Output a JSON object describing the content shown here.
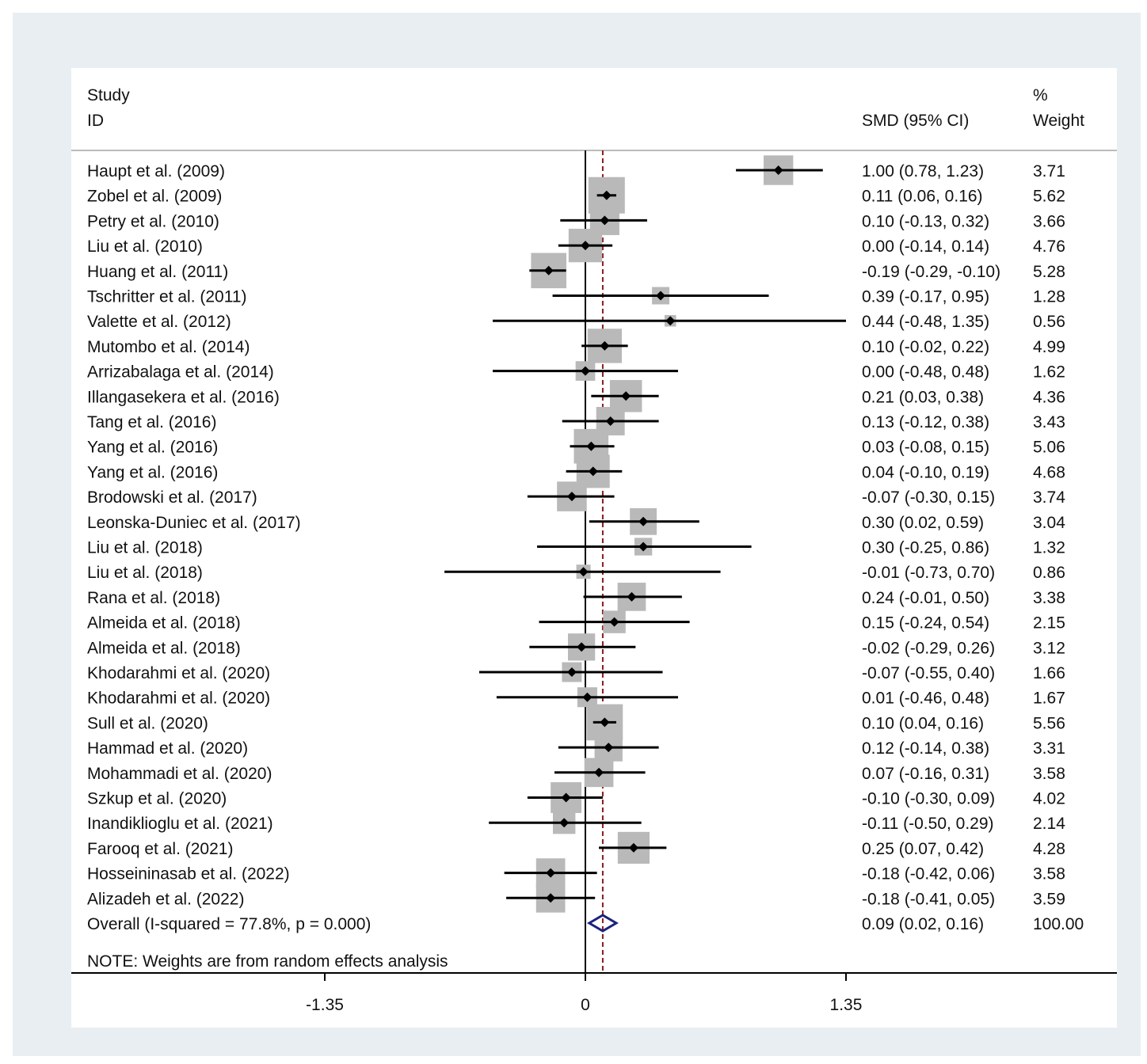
{
  "chart_data": {
    "type": "forest",
    "header": {
      "study_line1": "Study",
      "study_line2": "ID",
      "effect_label": "SMD (95% CI)",
      "weight_line1": "%",
      "weight_line2": "Weight"
    },
    "xticks": [
      {
        "value": -1.35,
        "label": "-1.35"
      },
      {
        "value": 0,
        "label": "0"
      },
      {
        "value": 1.35,
        "label": "1.35"
      }
    ],
    "studies": [
      {
        "name": "Haupt et al. (2009)",
        "smd": 1.0,
        "lower": 0.78,
        "upper": 1.23,
        "ci_text": "1.00 (0.78, 1.23)",
        "weight": 3.71,
        "weight_text": "3.71"
      },
      {
        "name": "Zobel et al. (2009)",
        "smd": 0.11,
        "lower": 0.06,
        "upper": 0.16,
        "ci_text": "0.11 (0.06, 0.16)",
        "weight": 5.62,
        "weight_text": "5.62"
      },
      {
        "name": "Petry et al. (2010)",
        "smd": 0.1,
        "lower": -0.13,
        "upper": 0.32,
        "ci_text": "0.10 (-0.13, 0.32)",
        "weight": 3.66,
        "weight_text": "3.66"
      },
      {
        "name": "Liu et al. (2010)",
        "smd": 0.0,
        "lower": -0.14,
        "upper": 0.14,
        "ci_text": "0.00 (-0.14, 0.14)",
        "weight": 4.76,
        "weight_text": "4.76"
      },
      {
        "name": "Huang et al. (2011)",
        "smd": -0.19,
        "lower": -0.29,
        "upper": -0.1,
        "ci_text": "-0.19 (-0.29, -0.10)",
        "weight": 5.28,
        "weight_text": "5.28"
      },
      {
        "name": "Tschritter et al. (2011)",
        "smd": 0.39,
        "lower": -0.17,
        "upper": 0.95,
        "ci_text": "0.39 (-0.17, 0.95)",
        "weight": 1.28,
        "weight_text": "1.28"
      },
      {
        "name": "Valette et al. (2012)",
        "smd": 0.44,
        "lower": -0.48,
        "upper": 1.35,
        "ci_text": "0.44 (-0.48, 1.35)",
        "weight": 0.56,
        "weight_text": "0.56"
      },
      {
        "name": "Mutombo et al. (2014)",
        "smd": 0.1,
        "lower": -0.02,
        "upper": 0.22,
        "ci_text": "0.10 (-0.02, 0.22)",
        "weight": 4.99,
        "weight_text": "4.99"
      },
      {
        "name": "Arrizabalaga et al. (2014)",
        "smd": 0.0,
        "lower": -0.48,
        "upper": 0.48,
        "ci_text": "0.00 (-0.48, 0.48)",
        "weight": 1.62,
        "weight_text": "1.62"
      },
      {
        "name": "Illangasekera et al. (2016)",
        "smd": 0.21,
        "lower": 0.03,
        "upper": 0.38,
        "ci_text": "0.21 (0.03, 0.38)",
        "weight": 4.36,
        "weight_text": "4.36"
      },
      {
        "name": "Tang et al. (2016)",
        "smd": 0.13,
        "lower": -0.12,
        "upper": 0.38,
        "ci_text": "0.13 (-0.12, 0.38)",
        "weight": 3.43,
        "weight_text": "3.43"
      },
      {
        "name": "Yang et al. (2016)",
        "smd": 0.03,
        "lower": -0.08,
        "upper": 0.15,
        "ci_text": "0.03 (-0.08, 0.15)",
        "weight": 5.06,
        "weight_text": "5.06"
      },
      {
        "name": "Yang et al. (2016)",
        "smd": 0.04,
        "lower": -0.1,
        "upper": 0.19,
        "ci_text": "0.04 (-0.10, 0.19)",
        "weight": 4.68,
        "weight_text": "4.68"
      },
      {
        "name": "Brodowski et al. (2017)",
        "smd": -0.07,
        "lower": -0.3,
        "upper": 0.15,
        "ci_text": "-0.07 (-0.30, 0.15)",
        "weight": 3.74,
        "weight_text": "3.74"
      },
      {
        "name": "Leonska-Duniec et al. (2017)",
        "smd": 0.3,
        "lower": 0.02,
        "upper": 0.59,
        "ci_text": "0.30 (0.02, 0.59)",
        "weight": 3.04,
        "weight_text": "3.04"
      },
      {
        "name": "Liu et al. (2018)",
        "smd": 0.3,
        "lower": -0.25,
        "upper": 0.86,
        "ci_text": "0.30 (-0.25, 0.86)",
        "weight": 1.32,
        "weight_text": "1.32"
      },
      {
        "name": "Liu et al. (2018)",
        "smd": -0.01,
        "lower": -0.73,
        "upper": 0.7,
        "ci_text": "-0.01 (-0.73, 0.70)",
        "weight": 0.86,
        "weight_text": "0.86"
      },
      {
        "name": "Rana et al. (2018)",
        "smd": 0.24,
        "lower": -0.01,
        "upper": 0.5,
        "ci_text": "0.24 (-0.01, 0.50)",
        "weight": 3.38,
        "weight_text": "3.38"
      },
      {
        "name": "Almeida et al. (2018)",
        "smd": 0.15,
        "lower": -0.24,
        "upper": 0.54,
        "ci_text": "0.15 (-0.24, 0.54)",
        "weight": 2.15,
        "weight_text": "2.15"
      },
      {
        "name": "Almeida et al. (2018)",
        "smd": -0.02,
        "lower": -0.29,
        "upper": 0.26,
        "ci_text": "-0.02 (-0.29, 0.26)",
        "weight": 3.12,
        "weight_text": "3.12"
      },
      {
        "name": "Khodarahmi et al. (2020)",
        "smd": -0.07,
        "lower": -0.55,
        "upper": 0.4,
        "ci_text": "-0.07 (-0.55, 0.40)",
        "weight": 1.66,
        "weight_text": "1.66"
      },
      {
        "name": "Khodarahmi et al. (2020)",
        "smd": 0.01,
        "lower": -0.46,
        "upper": 0.48,
        "ci_text": "0.01 (-0.46, 0.48)",
        "weight": 1.67,
        "weight_text": "1.67"
      },
      {
        "name": "Sull et al. (2020)",
        "smd": 0.1,
        "lower": 0.04,
        "upper": 0.16,
        "ci_text": "0.10 (0.04, 0.16)",
        "weight": 5.56,
        "weight_text": "5.56"
      },
      {
        "name": "Hammad et al. (2020)",
        "smd": 0.12,
        "lower": -0.14,
        "upper": 0.38,
        "ci_text": "0.12 (-0.14, 0.38)",
        "weight": 3.31,
        "weight_text": "3.31"
      },
      {
        "name": "Mohammadi et al. (2020)",
        "smd": 0.07,
        "lower": -0.16,
        "upper": 0.31,
        "ci_text": "0.07 (-0.16, 0.31)",
        "weight": 3.58,
        "weight_text": "3.58"
      },
      {
        "name": "Szkup et al. (2020)",
        "smd": -0.1,
        "lower": -0.3,
        "upper": 0.09,
        "ci_text": "-0.10 (-0.30, 0.09)",
        "weight": 4.02,
        "weight_text": "4.02"
      },
      {
        "name": "Inandiklioglu et al. (2021)",
        "smd": -0.11,
        "lower": -0.5,
        "upper": 0.29,
        "ci_text": "-0.11 (-0.50, 0.29)",
        "weight": 2.14,
        "weight_text": "2.14"
      },
      {
        "name": "Farooq et al. (2021)",
        "smd": 0.25,
        "lower": 0.07,
        "upper": 0.42,
        "ci_text": "0.25 (0.07, 0.42)",
        "weight": 4.28,
        "weight_text": "4.28"
      },
      {
        "name": "Hosseininasab et al. (2022)",
        "smd": -0.18,
        "lower": -0.42,
        "upper": 0.06,
        "ci_text": "-0.18 (-0.42, 0.06)",
        "weight": 3.58,
        "weight_text": "3.58"
      },
      {
        "name": "Alizadeh et al. (2022)",
        "smd": -0.18,
        "lower": -0.41,
        "upper": 0.05,
        "ci_text": "-0.18 (-0.41, 0.05)",
        "weight": 3.59,
        "weight_text": "3.59"
      }
    ],
    "overall": {
      "label": "Overall  (I-squared = 77.8%, p = 0.000)",
      "smd": 0.09,
      "lower": 0.02,
      "upper": 0.16,
      "ci_text": "0.09 (0.02, 0.16)",
      "weight_text": "100.00"
    },
    "note": "NOTE: Weights are from random effects analysis",
    "colors": {
      "background": "#e9eef3",
      "box": "#b9b9b9",
      "point": "#000000",
      "diamond": "#1a237e",
      "overall_line": "#8b1a1a"
    }
  }
}
